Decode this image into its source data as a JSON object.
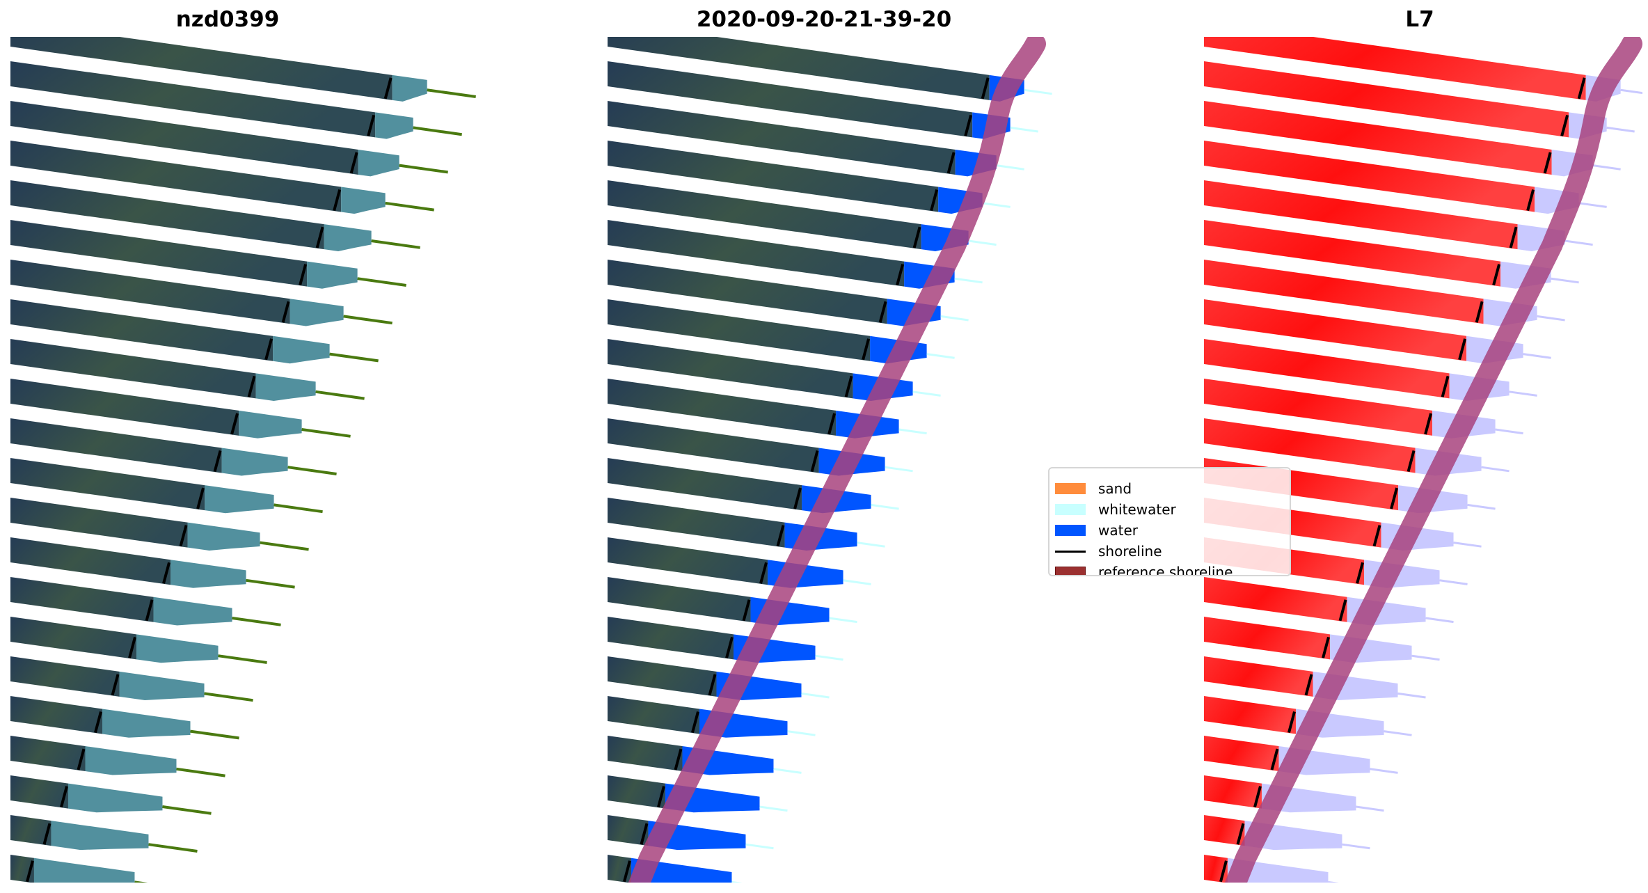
{
  "panels": [
    {
      "title": "nzd0399",
      "style": "rgb"
    },
    {
      "title": "2020-09-20-21-39-20",
      "style": "classified"
    },
    {
      "title": "L7",
      "style": "index"
    }
  ],
  "legend": {
    "items": [
      {
        "label": "sand",
        "color": "#ff8c3c",
        "kind": "patch"
      },
      {
        "label": "whitewater",
        "color": "#c8ffff",
        "kind": "patch"
      },
      {
        "label": "water",
        "color": "#0055ff",
        "kind": "patch"
      },
      {
        "label": "shoreline",
        "color": "#000000",
        "kind": "line"
      },
      {
        "label": "reference shoreline",
        "color": "#9b3030",
        "kind": "patch"
      }
    ]
  },
  "colors": {
    "land": "#2e4652",
    "land_index": "#ff2020",
    "water_rgb": "#3f8494",
    "water_classified": "#0055ff",
    "water_index": "#c9c9ff",
    "whitewater": "#c8ffff",
    "reference_band": "#a8437e",
    "transect": "#4a7a10"
  }
}
